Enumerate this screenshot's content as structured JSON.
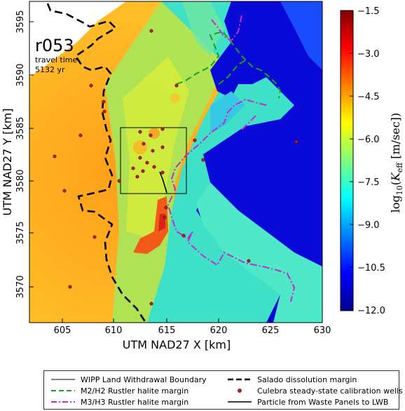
{
  "map": {
    "run_id": "r053",
    "travel_time_label": "travel time",
    "travel_time_value": "5132 yr",
    "x_axis_label": "UTM NAD27 X [km]",
    "y_axis_label": "UTM NAD27 Y [km]",
    "x_ticks": [
      "605",
      "610",
      "615",
      "620",
      "625",
      "630"
    ],
    "y_ticks": [
      "3570",
      "3575",
      "3580",
      "3585",
      "3590",
      "3595"
    ],
    "x_range_km": [
      601.5,
      630
    ],
    "y_range_km": [
      3566.5,
      3597.5
    ]
  },
  "colorbar": {
    "ticks": [
      "−1.5",
      "−3.0",
      "−4.5",
      "−6.0",
      "−7.5",
      "−9.0",
      "−10.5",
      "−12.0"
    ],
    "label_prefix": "log",
    "label_sub": "10",
    "label_K": "K",
    "label_K_sub": "eff",
    "label_units": "[m/sec]",
    "range": [
      -12.0,
      -1.5
    ],
    "colormap": "jet"
  },
  "legend": {
    "items": [
      {
        "label": "WIPP Land Withdrawal Boundary",
        "style": "thin-black-line"
      },
      {
        "label": "Salado dissolution margin",
        "style": "black-dashed"
      },
      {
        "label": "M2/H2 Rustler halite margin",
        "style": "green-dashed"
      },
      {
        "label": "Culebra steady-state calibration wells",
        "style": "red-dot"
      },
      {
        "label": "M3/H3 Rustler halite margin",
        "style": "purple-dashdot"
      },
      {
        "label": "Particle from Waste Panels to LWB",
        "style": "black-line"
      }
    ]
  },
  "colors": {
    "salado": "#000000",
    "m2h2": "#1f9e1f",
    "m3h3": "#c030c0",
    "wells": "#b22222",
    "sea": "#0a0ad8"
  }
}
